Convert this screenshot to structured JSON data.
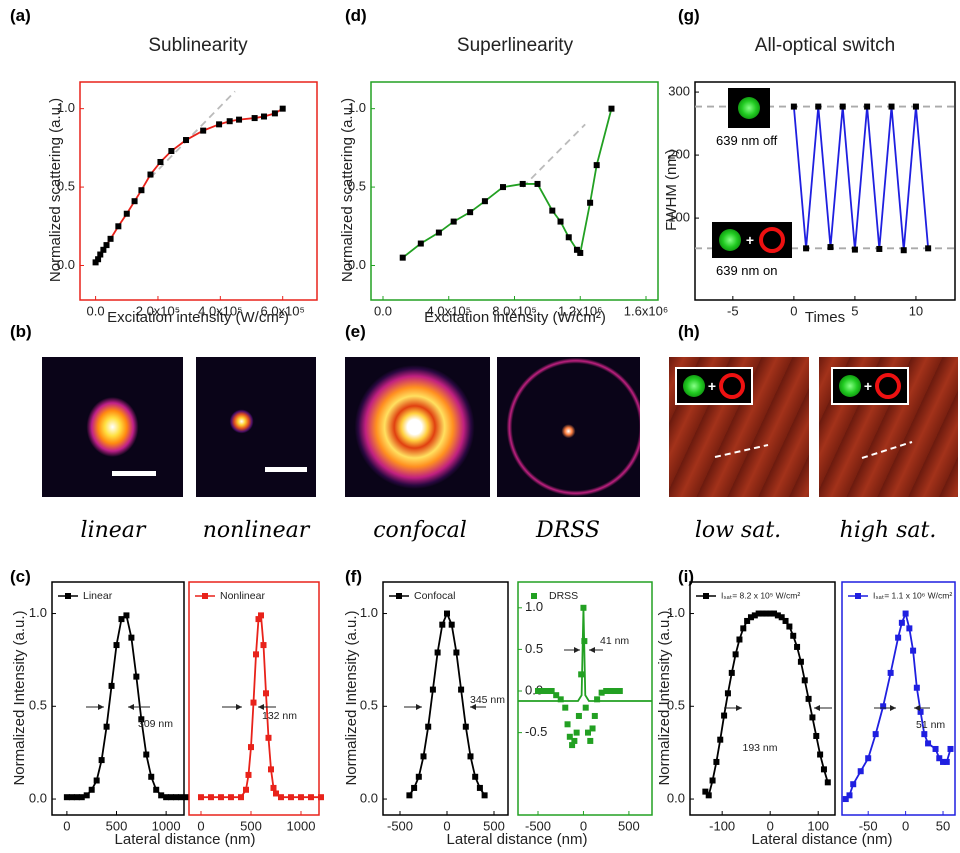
{
  "panels": {
    "labels": [
      "(a)",
      "(d)",
      "(g)",
      "(b)",
      "(e)",
      "(h)",
      "(c)",
      "(f)",
      "(i)"
    ],
    "captions": [
      "linear",
      "nonlinear",
      "confocal",
      "DRSS",
      "low sat.",
      "high sat."
    ],
    "insets": [
      "639 nm off",
      "639 nm on"
    ]
  },
  "chart_data": [
    {
      "type": "line",
      "title": "Sublinearity",
      "title_color": "#e8221a",
      "frame_color": "#e8221a",
      "xlabel": "Excitation intensity (W/cm²)",
      "ylabel": "Normalized scattering (a.u.)",
      "xlim": [
        -50000,
        710000
      ],
      "ylim": [
        -0.22,
        1.17
      ],
      "xticks": [
        {
          "value": 0,
          "label": "0.0"
        },
        {
          "value": 200000,
          "label": "2.0x10⁵"
        },
        {
          "value": 400000,
          "label": "4.0x10⁵"
        },
        {
          "value": 600000,
          "label": "6.0x10⁵"
        }
      ],
      "yticks": [
        {
          "value": 0,
          "label": "0.0"
        },
        {
          "value": 0.5,
          "label": "0.5"
        },
        {
          "value": 1,
          "label": "1.0"
        }
      ],
      "marker": "square",
      "marker_color": "#000000",
      "x": [
        0,
        8000,
        15000,
        25000,
        35000,
        48000,
        73000,
        100000,
        125000,
        147000,
        176000,
        208000,
        243000,
        290000,
        345000,
        396000,
        430000,
        460000,
        510000,
        540000,
        575000,
        600000
      ],
      "series": [
        {
          "color": "#e8221a",
          "values": [
            0.02,
            0.04,
            0.07,
            0.1,
            0.13,
            0.17,
            0.25,
            0.33,
            0.41,
            0.48,
            0.58,
            0.66,
            0.73,
            0.8,
            0.86,
            0.9,
            0.92,
            0.93,
            0.94,
            0.95,
            0.97,
            1.0
          ]
        }
      ],
      "guides": [
        {
          "x": [
            176000,
            447000
          ],
          "values": [
            0.56,
            1.11
          ],
          "color": "#bbbbbb",
          "dashed": true
        }
      ]
    },
    {
      "type": "line",
      "title": "Superlinearity",
      "title_color": "#22a022",
      "frame_color": "#22a022",
      "xlabel": "Excitation intensity (W/cm²)",
      "ylabel": "Normalized scattering (a.u.)",
      "xlim": [
        -73000,
        1673000
      ],
      "ylim": [
        -0.22,
        1.17
      ],
      "xticks": [
        {
          "value": 0,
          "label": "0.0"
        },
        {
          "value": 400000,
          "label": "4.0x10⁵"
        },
        {
          "value": 800000,
          "label": "8.0x10⁵"
        },
        {
          "value": 1200000,
          "label": "1.2x10⁶"
        },
        {
          "value": 1600000,
          "label": "1.6x10⁶"
        }
      ],
      "yticks": [
        {
          "value": 0,
          "label": "0.0"
        },
        {
          "value": 0.5,
          "label": "0.5"
        },
        {
          "value": 1,
          "label": "1.0"
        }
      ],
      "marker": "square",
      "marker_color": "#000000",
      "x": [
        120000,
        230000,
        340000,
        430000,
        530000,
        620000,
        730000,
        850000,
        940000,
        1030000,
        1080000,
        1130000,
        1180000,
        1200000,
        1260000,
        1300000,
        1390000
      ],
      "series": [
        {
          "color": "#22a022",
          "values": [
            0.05,
            0.14,
            0.21,
            0.28,
            0.34,
            0.41,
            0.5,
            0.52,
            0.52,
            0.35,
            0.28,
            0.18,
            0.1,
            0.08,
            0.4,
            0.64,
            1.0
          ]
        }
      ],
      "guides": [
        {
          "x": [
            850000,
            1230000
          ],
          "values": [
            0.5,
            0.9
          ],
          "color": "#bbbbbb",
          "dashed": true
        }
      ]
    },
    {
      "type": "line",
      "title": "All-optical switch",
      "title_color": "#1f1fe0",
      "frame_color": "#000000",
      "xlabel": "Times",
      "ylabel": "FWHM (nm)",
      "xlim": [
        -8.1,
        13.2
      ],
      "ylim": [
        -30,
        316
      ],
      "xticks": [
        -5,
        0,
        5,
        10
      ],
      "yticks": [
        100,
        200,
        300
      ],
      "marker": "square",
      "marker_color": "#000000",
      "x": [
        0,
        1,
        2,
        3,
        4,
        5,
        6,
        7,
        8,
        9,
        10,
        11
      ],
      "series": [
        {
          "color": "#1f1fe0",
          "values": [
            277,
            52,
            277,
            54,
            277,
            50,
            277,
            51,
            277,
            49,
            277,
            52
          ]
        }
      ],
      "guides": [
        {
          "x": [
            -8.1,
            13.2
          ],
          "values": [
            277,
            277
          ],
          "color": "#aaaaaa",
          "dashed": true
        },
        {
          "x": [
            -8.1,
            13.2
          ],
          "values": [
            52,
            52
          ],
          "color": "#aaaaaa",
          "dashed": true
        }
      ]
    },
    {
      "type": "line",
      "frame_color": "#000000",
      "xlabel": "Lateral distance (nm)",
      "ylabel": "Normalized Intensity (a.u.)",
      "xlim": [
        -150,
        1180
      ],
      "ylim": [
        -0.086,
        1.17
      ],
      "xticks": [
        0,
        500,
        1000
      ],
      "yticks": [
        {
          "value": 0,
          "label": "0.0"
        },
        {
          "value": 0.5,
          "label": "0.5"
        },
        {
          "value": 1,
          "label": "1.0"
        }
      ],
      "marker": "square",
      "x": [
        0,
        50,
        100,
        150,
        200,
        250,
        300,
        350,
        400,
        450,
        500,
        550,
        600,
        650,
        700,
        750,
        800,
        850,
        900,
        950,
        1000,
        1050,
        1100,
        1150,
        1200
      ],
      "series": [
        {
          "name": "Linear",
          "color": "#000000",
          "values": [
            0.01,
            0.01,
            0.01,
            0.01,
            0.02,
            0.05,
            0.1,
            0.21,
            0.39,
            0.61,
            0.83,
            0.97,
            0.99,
            0.87,
            0.66,
            0.43,
            0.24,
            0.12,
            0.05,
            0.02,
            0.01,
            0.01,
            0.01,
            0.01,
            0.01
          ]
        }
      ],
      "annotations": [
        {
          "text": "309 nm",
          "color": "#000000"
        }
      ]
    },
    {
      "type": "line",
      "frame_color": "#e8221a",
      "xlim": [
        -120,
        1180
      ],
      "ylim": [
        -0.086,
        1.17
      ],
      "xticks": [
        0,
        500,
        1000
      ],
      "marker": "square",
      "x": [
        0,
        100,
        200,
        300,
        400,
        450,
        475,
        500,
        525,
        550,
        575,
        600,
        625,
        650,
        675,
        700,
        725,
        750,
        800,
        900,
        1000,
        1100,
        1200
      ],
      "series": [
        {
          "name": "Nonlinear",
          "color": "#e8221a",
          "values": [
            0.01,
            0.01,
            0.01,
            0.01,
            0.01,
            0.05,
            0.13,
            0.28,
            0.52,
            0.78,
            0.97,
            0.99,
            0.83,
            0.57,
            0.33,
            0.16,
            0.06,
            0.03,
            0.01,
            0.01,
            0.01,
            0.01,
            0.01
          ]
        }
      ],
      "annotations": [
        {
          "text": "132 nm",
          "color": "#e8221a"
        }
      ]
    },
    {
      "type": "line",
      "frame_color": "#000000",
      "xlabel": "Lateral distance (nm)",
      "ylabel": "Normalized Intensity (a.u.)",
      "xlim": [
        -681,
        649
      ],
      "ylim": [
        -0.086,
        1.17
      ],
      "xticks": [
        -500,
        0,
        500
      ],
      "yticks": [
        {
          "value": 0,
          "label": "0.0"
        },
        {
          "value": 0.5,
          "label": "0.5"
        },
        {
          "value": 1,
          "label": "1.0"
        }
      ],
      "marker": "square",
      "x": [
        -400,
        -350,
        -300,
        -250,
        -200,
        -150,
        -100,
        -50,
        0,
        50,
        100,
        150,
        200,
        250,
        300,
        350,
        400
      ],
      "series": [
        {
          "name": "Confocal",
          "color": "#000000",
          "values": [
            0.02,
            0.06,
            0.12,
            0.23,
            0.39,
            0.59,
            0.79,
            0.94,
            1.0,
            0.94,
            0.79,
            0.59,
            0.39,
            0.23,
            0.12,
            0.06,
            0.02
          ]
        }
      ],
      "annotations": [
        {
          "text": "345 nm",
          "color": "#000000"
        }
      ]
    },
    {
      "type": "scatter",
      "frame_color": "#22a022",
      "tick_color": "#22a022",
      "xlim": [
        -720,
        754
      ],
      "ylim": [
        -1.49,
        1.31
      ],
      "xticks": [
        -500,
        0,
        500
      ],
      "yticks": [
        {
          "value": -0.5,
          "label": "-0.5"
        },
        {
          "value": 0,
          "label": "0.0"
        },
        {
          "value": 0.5,
          "label": "0.5"
        },
        {
          "value": 1,
          "label": "1.0"
        }
      ],
      "marker": "square",
      "x": [
        -500,
        -450,
        -400,
        -350,
        -300,
        -250,
        -200,
        -175,
        -150,
        -125,
        -100,
        -75,
        -50,
        -25,
        0,
        10,
        25,
        50,
        75,
        100,
        125,
        150,
        200,
        250,
        300,
        350,
        400
      ],
      "series": [
        {
          "name": "DRSS",
          "color": "#22a022",
          "values": [
            0,
            0,
            0,
            0,
            -0.05,
            -0.1,
            -0.2,
            -0.4,
            -0.55,
            -0.65,
            -0.6,
            -0.5,
            -0.3,
            0.2,
            1.0,
            0.6,
            -0.2,
            -0.5,
            -0.6,
            -0.45,
            -0.3,
            -0.1,
            -0.02,
            0,
            0,
            0,
            0
          ]
        }
      ],
      "guides": [
        {
          "x": [
            -720,
            -60,
            -20,
            0,
            20,
            60,
            754
          ],
          "values": [
            -0.12,
            -0.12,
            -0.05,
            1.0,
            -0.05,
            -0.12,
            -0.12
          ],
          "color": "#22a022",
          "dashed": false
        }
      ],
      "annotations": [
        {
          "text": "41 nm",
          "color": "#22a022"
        }
      ]
    },
    {
      "type": "line",
      "frame_color": "#000000",
      "xlabel": "Lateral distance (nm)",
      "ylabel": "Normalized Intensity (a.u.)",
      "xlim": [
        -167,
        135
      ],
      "ylim": [
        -0.086,
        1.17
      ],
      "xticks": [
        -100,
        0,
        100
      ],
      "yticks": [
        {
          "value": 0,
          "label": "0.0"
        },
        {
          "value": 0.5,
          "label": "0.5"
        },
        {
          "value": 1,
          "label": "1.0"
        }
      ],
      "marker": "square",
      "x": [
        -135,
        -128,
        -120,
        -112,
        -104,
        -96,
        -88,
        -80,
        -72,
        -64,
        -56,
        -48,
        -40,
        -32,
        -24,
        -16,
        -8,
        0,
        8,
        16,
        24,
        32,
        40,
        48,
        56,
        64,
        72,
        80,
        88,
        96,
        104,
        112,
        120
      ],
      "series": [
        {
          "name": "Iₛₐₜ= 8.2 x 10⁵ W/cm²",
          "color": "#000000",
          "values": [
            0.04,
            0.02,
            0.1,
            0.2,
            0.32,
            0.45,
            0.57,
            0.68,
            0.78,
            0.86,
            0.92,
            0.96,
            0.98,
            0.99,
            1.0,
            1.0,
            1.0,
            1.0,
            1.0,
            0.99,
            0.98,
            0.96,
            0.93,
            0.88,
            0.82,
            0.74,
            0.64,
            0.54,
            0.44,
            0.34,
            0.24,
            0.16,
            0.09
          ]
        }
      ],
      "annotations": [
        {
          "text": "193 nm",
          "color": "#000000"
        }
      ]
    },
    {
      "type": "line",
      "frame_color": "#1f1fe0",
      "xlim": [
        -85,
        66
      ],
      "ylim": [
        -0.086,
        1.17
      ],
      "xticks": [
        -50,
        0,
        50
      ],
      "marker": "square",
      "x": [
        -80,
        -75,
        -70,
        -60,
        -50,
        -40,
        -30,
        -20,
        -10,
        -5,
        0,
        5,
        10,
        15,
        20,
        25,
        30,
        40,
        45,
        50,
        55,
        60
      ],
      "series": [
        {
          "name": "Iₛₐₜ= 1.1 x 10⁶ W/cm²",
          "color": "#1f1fe0",
          "values": [
            0,
            0.02,
            0.08,
            0.15,
            0.22,
            0.35,
            0.5,
            0.68,
            0.87,
            0.95,
            1.0,
            0.92,
            0.8,
            0.6,
            0.47,
            0.35,
            0.3,
            0.27,
            0.22,
            0.2,
            0.2,
            0.27
          ]
        }
      ],
      "annotations": [
        {
          "text": "51 nm",
          "color": "#1f1fe0"
        }
      ]
    }
  ]
}
